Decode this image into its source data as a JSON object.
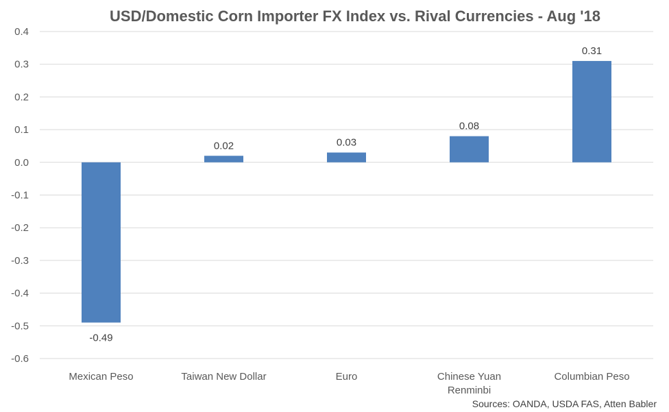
{
  "chart_data": {
    "type": "bar",
    "title": "USD/Domestic Corn Importer FX Index vs. Rival Currencies - Aug '18",
    "categories": [
      [
        "Mexican Peso"
      ],
      [
        "Taiwan New Dollar"
      ],
      [
        "Euro"
      ],
      [
        "Chinese Yuan",
        "Renminbi"
      ],
      [
        "Columbian Peso"
      ]
    ],
    "values": [
      -0.49,
      0.02,
      0.03,
      0.08,
      0.31
    ],
    "data_labels": [
      "-0.49",
      "0.02",
      "0.03",
      "0.08",
      "0.31"
    ],
    "ylim": [
      -0.6,
      0.4
    ],
    "yticks": [
      0.4,
      0.3,
      0.2,
      0.1,
      0.0,
      -0.1,
      -0.2,
      -0.3,
      -0.4,
      -0.5,
      -0.6
    ],
    "ytick_labels": [
      "0.4",
      "0.3",
      "0.2",
      "0.1",
      "0.0",
      "-0.1",
      "-0.2",
      "-0.3",
      "-0.4",
      "-0.5",
      "-0.6"
    ],
    "bar_color": "#4f81bd",
    "grid": true,
    "legend": "none",
    "source": "Sources: OANDA, USDA FAS, Atten Babler"
  }
}
